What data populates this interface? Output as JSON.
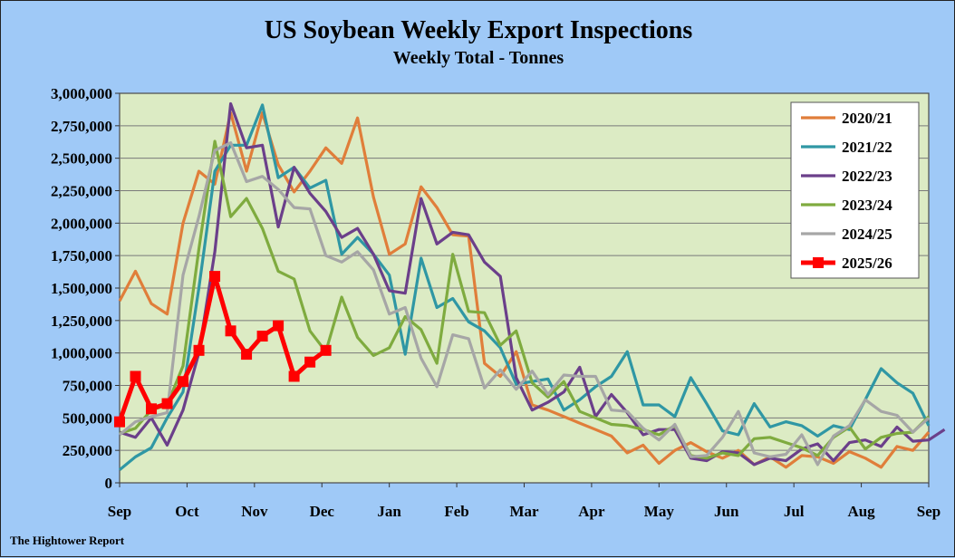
{
  "chart_data": {
    "type": "line",
    "title": "US Soybean Weekly Export Inspections",
    "subtitle": "Weekly Total - Tonnes",
    "credit": "The Hightower Report",
    "ylim": [
      0,
      3000000
    ],
    "y_ticks": [
      0,
      250000,
      500000,
      750000,
      1000000,
      1250000,
      1500000,
      1750000,
      2000000,
      2250000,
      2500000,
      2750000,
      3000000
    ],
    "y_tick_labels": [
      "0",
      "250,000",
      "500,000",
      "750,000",
      "1,000,000",
      "1,250,000",
      "1,500,000",
      "1,750,000",
      "2,000,000",
      "2,250,000",
      "2,500,000",
      "2,750,000",
      "3,000,000"
    ],
    "x_tick_labels": [
      "Sep",
      "Oct",
      "Nov",
      "Dec",
      "Jan",
      "Feb",
      "Mar",
      "Apr",
      "May",
      "Jun",
      "Jul",
      "Aug",
      "Sep"
    ],
    "weeks_per_month": 4.25,
    "grid": "horizontal",
    "legend_position": "top-right",
    "series": [
      {
        "name": "2020/21",
        "color": "#e07e3a",
        "values": [
          1400000,
          1630000,
          1380000,
          1300000,
          2000000,
          2400000,
          2300000,
          2850000,
          2400000,
          2850000,
          2450000,
          2240000,
          2400000,
          2580000,
          2460000,
          2810000,
          2200000,
          1760000,
          1840000,
          2280000,
          2120000,
          1910000,
          1900000,
          920000,
          820000,
          1010000,
          600000,
          560000,
          510000,
          460000,
          410000,
          360000,
          230000,
          290000,
          150000,
          250000,
          310000,
          240000,
          190000,
          250000,
          140000,
          200000,
          120000,
          210000,
          200000,
          150000,
          240000,
          190000,
          120000,
          280000,
          250000,
          390000
        ]
      },
      {
        "name": "2021/22",
        "color": "#2f97a4",
        "values": [
          100000,
          200000,
          270000,
          500000,
          700000,
          1500000,
          2400000,
          2600000,
          2600000,
          2910000,
          2350000,
          2430000,
          2270000,
          2330000,
          1760000,
          1890000,
          1760000,
          1600000,
          990000,
          1730000,
          1350000,
          1420000,
          1240000,
          1170000,
          1040000,
          760000,
          780000,
          800000,
          560000,
          640000,
          740000,
          820000,
          1010000,
          600000,
          600000,
          510000,
          810000,
          610000,
          400000,
          370000,
          610000,
          430000,
          470000,
          440000,
          360000,
          440000,
          410000,
          640000,
          880000,
          770000,
          690000,
          440000
        ]
      },
      {
        "name": "2022/23",
        "color": "#6b3f8a",
        "values": [
          390000,
          350000,
          500000,
          290000,
          560000,
          1000000,
          1780000,
          2920000,
          2580000,
          2600000,
          1970000,
          2430000,
          2230000,
          2090000,
          1890000,
          1960000,
          1760000,
          1480000,
          1460000,
          2190000,
          1840000,
          1930000,
          1910000,
          1700000,
          1590000,
          810000,
          560000,
          620000,
          700000,
          890000,
          510000,
          680000,
          540000,
          370000,
          410000,
          410000,
          190000,
          170000,
          240000,
          230000,
          140000,
          190000,
          170000,
          260000,
          300000,
          170000,
          310000,
          330000,
          280000,
          430000,
          320000,
          330000,
          410000
        ]
      },
      {
        "name": "2023/24",
        "color": "#7fab3f",
        "values": [
          380000,
          420000,
          560000,
          600000,
          900000,
          1800000,
          2630000,
          2050000,
          2190000,
          1960000,
          1630000,
          1570000,
          1170000,
          1010000,
          1430000,
          1120000,
          980000,
          1040000,
          1280000,
          1180000,
          920000,
          1760000,
          1320000,
          1310000,
          1060000,
          1170000,
          770000,
          660000,
          780000,
          550000,
          500000,
          450000,
          440000,
          410000,
          370000,
          440000,
          210000,
          190000,
          230000,
          210000,
          340000,
          350000,
          310000,
          270000,
          210000,
          350000,
          430000,
          260000,
          350000,
          380000,
          390000,
          510000
        ]
      },
      {
        "name": "2024/25",
        "color": "#a6a6a6",
        "values": [
          370000,
          470000,
          510000,
          540000,
          1600000,
          2050000,
          2560000,
          2620000,
          2320000,
          2360000,
          2260000,
          2120000,
          2110000,
          1750000,
          1700000,
          1780000,
          1640000,
          1300000,
          1350000,
          960000,
          740000,
          1140000,
          1110000,
          730000,
          870000,
          720000,
          860000,
          680000,
          830000,
          820000,
          820000,
          560000,
          550000,
          420000,
          330000,
          450000,
          200000,
          210000,
          350000,
          550000,
          230000,
          200000,
          220000,
          370000,
          140000,
          360000,
          440000,
          640000,
          550000,
          520000,
          390000,
          500000
        ]
      },
      {
        "name": "2025/26",
        "color": "#ff0000",
        "values": [
          470000,
          820000,
          570000,
          610000,
          780000,
          1020000,
          1590000,
          1170000,
          990000,
          1130000,
          1210000,
          820000,
          930000,
          1020000
        ]
      }
    ]
  }
}
